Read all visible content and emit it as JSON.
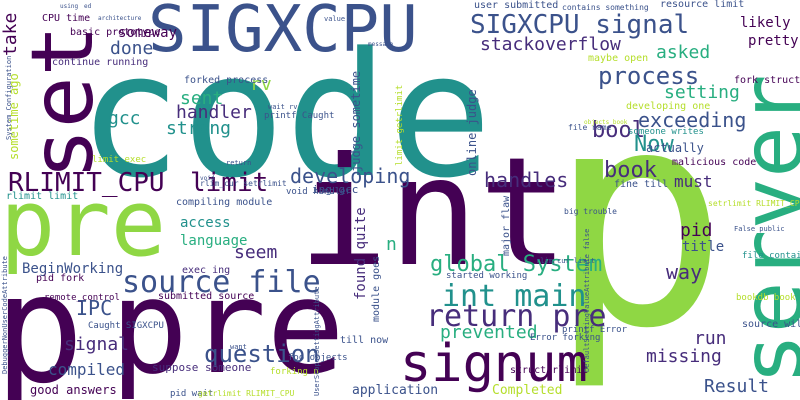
{
  "palette": {
    "background": "#ffffff",
    "green": "#8fd744",
    "lime": "#b5de2b",
    "teal": "#21918c",
    "sea": "#28ae80",
    "blue": "#3b528b",
    "indigo": "#472d7b",
    "purple": "#440154",
    "yellow": "#fde725"
  },
  "words": {
    "code": "code",
    "int": "int",
    "p_big": "p",
    "p_small": "p",
    "pre": "pre",
    "pre_small": "pre",
    "set": "set",
    "server": "server",
    "sigxcpu_big": "SIGXCPU",
    "sigxcpu_signal": "SIGXCPU signal",
    "signum": "signum",
    "source_file": "source file",
    "int_main": "int main",
    "return_pre": "return pre",
    "rlimit_cpu": "RLIMIT_CPU",
    "limit": "limit",
    "global_system": "global System",
    "question": "question",
    "process": "process",
    "stackoverflow": "stackoverflow",
    "book": "book",
    "bool": "bool",
    "now": "Now",
    "exceeding": "exceeding",
    "developing": "developing",
    "handles": "handles",
    "result": "Result",
    "missing": "missing",
    "run": "run",
    "pid": "pid",
    "way": "way",
    "asked": "asked",
    "setting": "setting",
    "strong": "strong",
    "handler": "handler",
    "sent": "sent",
    "gcc": "gcc",
    "done": "done",
    "someway": "someway",
    "rv": "rv",
    "ipc": "IPC",
    "signal": "signal",
    "compiled": "compiled",
    "seem": "seem",
    "prevented": "prevented",
    "found_quite": "found quite",
    "must": "must",
    "take": "take",
    "likely": "likely",
    "pretty": "pretty",
    "n": "n",
    "access": "access",
    "language": "language",
    "beginworking": "BeginWorking",
    "good_answers": "good answers",
    "application": "application",
    "completed": "Completed",
    "judge_sometime": "judge sometime",
    "online_judge": "online judge",
    "sometime_ago": "sometime ago",
    "actually": "actually",
    "title": "title",
    "malicious_code": "malicious code",
    "fine_till": "fine till",
    "suppose_someone": "suppose someone",
    "cpu_time": "CPU time",
    "basic_prototype": "basic prototype",
    "continue_running": "continue running",
    "forked_process": "forked process",
    "user_submitted": "user submitted",
    "resource_limit": "resource limit",
    "maybe_open": "maybe open",
    "fork_struct": "fork struct",
    "developing_one": "developing one",
    "someone_writes": "someone writes",
    "source_will": "source will",
    "file_contains": "file contains",
    "pid_fork": "pid fork",
    "rlimit_limit": "rlimit limit",
    "remote_control": "remote_control",
    "submitted_source": "submitted source",
    "till_now": "till now",
    "struct_rlimit": "struct rlimit",
    "pid_wait": "pid wait",
    "printf_error": "printf Error",
    "error_forking": "Error forking",
    "exec_ing": "exec ing",
    "compiling_module": "compiling module",
    "void_handler": "void handler",
    "ing_gcc": "ing gcc",
    "started_working": "started working",
    "major_flaw": "major flaw",
    "module_goes": "module goes",
    "limit_getrlimit": "limit getrlimit",
    "printf_caught": "printf Caught",
    "caught_sigxcpu": "Caught SIGXCPU",
    "setrlimit_rlimit": "setrlimit RLIMIT_CPU",
    "rlim_cur_setrlimit": "rlim_cur setrlimit",
    "big_trouble": "big trouble",
    "limit_exec": "limit exec",
    "file_name": "file name",
    "bookdb_book": "bookdb book",
    "foo_objects": "foo objects",
    "getrlimit_rlimit": "getrlimit RLIMIT_CPU",
    "forking_n": "forking n",
    "system_configuration": "System Configuration",
    "default_setting": "DefaultSettingValueAttribute false",
    "user_scoped": "UserScopedSettingAttribute",
    "debugger_nonuser": "DebuggerNonUserCodeAttribute",
    "contains_something": "contains something",
    "objects_book": "objects book",
    "false_public": "False public",
    "rlim_cur_limit": "rlim_cur limit",
    "message": "message",
    "value": "value",
    "want": "want",
    "return": "return",
    "void": "void",
    "using": "using",
    "ed": "ed",
    "wait_rv": "wait rv",
    "architecture": "architecture"
  }
}
